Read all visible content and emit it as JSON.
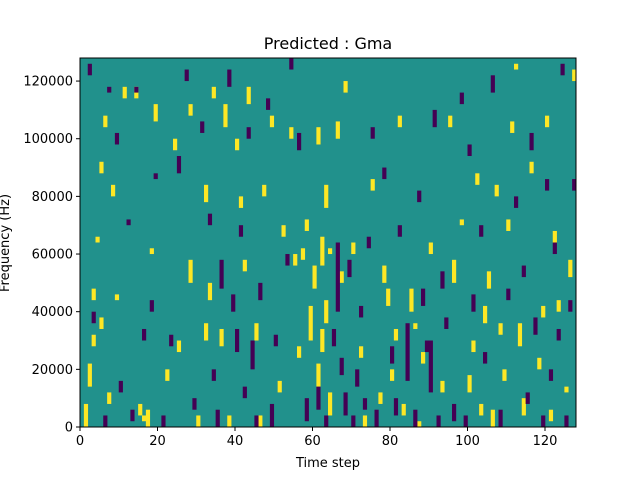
{
  "chart_data": {
    "type": "heatmap",
    "title": "Predicted : Gma",
    "xlabel": "Time step",
    "ylabel": "Frequency (Hz)",
    "xlim": [
      0,
      128
    ],
    "ylim": [
      0,
      128000
    ],
    "x_ticks": [
      0,
      20,
      40,
      60,
      80,
      100,
      120
    ],
    "y_ticks": [
      0,
      20000,
      40000,
      60000,
      80000,
      100000,
      120000
    ],
    "x_tick_labels": [
      "0",
      "20",
      "40",
      "60",
      "80",
      "100",
      "120"
    ],
    "y_tick_labels": [
      "0",
      "20000",
      "40000",
      "60000",
      "80000",
      "100000",
      "120000"
    ],
    "grid": false,
    "legend": "none",
    "value_range": [
      -1,
      1
    ],
    "colors": {
      "background": "#21918c",
      "high": "#fde725",
      "low": "#440154"
    },
    "background_value": 0,
    "cells": {
      "description_of_format": "each entry [time_step, frequency_bin_start_hz, frequency_bin_end_hz, value]",
      "high": [
        [
          1,
          0,
          8000,
          1
        ],
        [
          2,
          14000,
          22000,
          1
        ],
        [
          3,
          28000,
          32000,
          1
        ],
        [
          3,
          44000,
          48000,
          1
        ],
        [
          4,
          64000,
          66000,
          1
        ],
        [
          5,
          88000,
          92000,
          1
        ],
        [
          5,
          34000,
          38000,
          1
        ],
        [
          6,
          104000,
          108000,
          1
        ],
        [
          7,
          8000,
          12000,
          1
        ],
        [
          8,
          80000,
          84000,
          1
        ],
        [
          9,
          44000,
          46000,
          1
        ],
        [
          11,
          114000,
          118000,
          1
        ],
        [
          14,
          114000,
          118000,
          1
        ],
        [
          15,
          4000,
          8000,
          1
        ],
        [
          16,
          2000,
          4000,
          1
        ],
        [
          17,
          0,
          6000,
          1
        ],
        [
          18,
          60000,
          62000,
          1
        ],
        [
          19,
          106000,
          112000,
          1
        ],
        [
          22,
          16000,
          20000,
          1
        ],
        [
          24,
          96000,
          100000,
          1
        ],
        [
          25,
          26000,
          30000,
          1
        ],
        [
          28,
          108000,
          112000,
          1
        ],
        [
          28,
          50000,
          58000,
          1
        ],
        [
          30,
          0,
          4000,
          1
        ],
        [
          32,
          78000,
          84000,
          1
        ],
        [
          32,
          30000,
          36000,
          1
        ],
        [
          33,
          44000,
          50000,
          1
        ],
        [
          34,
          114000,
          118000,
          1
        ],
        [
          36,
          28000,
          34000,
          1
        ],
        [
          37,
          104000,
          112000,
          1
        ],
        [
          38,
          0,
          4000,
          1
        ],
        [
          40,
          96000,
          100000,
          1
        ],
        [
          41,
          76000,
          80000,
          1
        ],
        [
          42,
          54000,
          58000,
          1
        ],
        [
          43,
          112000,
          118000,
          1
        ],
        [
          45,
          30000,
          36000,
          1
        ],
        [
          46,
          0,
          4000,
          1
        ],
        [
          47,
          80000,
          84000,
          1
        ],
        [
          49,
          104000,
          108000,
          1
        ],
        [
          51,
          12000,
          16000,
          1
        ],
        [
          52,
          66000,
          70000,
          1
        ],
        [
          54,
          100000,
          104000,
          1
        ],
        [
          55,
          56000,
          60000,
          1
        ],
        [
          56,
          24000,
          28000,
          1
        ],
        [
          57,
          58000,
          62000,
          1
        ],
        [
          58,
          68000,
          72000,
          1
        ],
        [
          59,
          30000,
          42000,
          1
        ],
        [
          60,
          48000,
          56000,
          1
        ],
        [
          61,
          14000,
          22000,
          1
        ],
        [
          61,
          98000,
          104000,
          1
        ],
        [
          62,
          26000,
          34000,
          1
        ],
        [
          62,
          56000,
          66000,
          1
        ],
        [
          63,
          76000,
          84000,
          1
        ],
        [
          63,
          36000,
          44000,
          1
        ],
        [
          64,
          4000,
          12000,
          1
        ],
        [
          64,
          60000,
          62000,
          1
        ],
        [
          66,
          100000,
          106000,
          1
        ],
        [
          67,
          50000,
          54000,
          1
        ],
        [
          68,
          116000,
          120000,
          1
        ],
        [
          70,
          60000,
          64000,
          1
        ],
        [
          72,
          24000,
          28000,
          1
        ],
        [
          73,
          0,
          4000,
          1
        ],
        [
          75,
          82000,
          86000,
          1
        ],
        [
          77,
          8000,
          12000,
          1
        ],
        [
          78,
          50000,
          56000,
          1
        ],
        [
          79,
          42000,
          48000,
          1
        ],
        [
          80,
          16000,
          20000,
          1
        ],
        [
          81,
          30000,
          34000,
          1
        ],
        [
          82,
          104000,
          108000,
          1
        ],
        [
          83,
          4000,
          8000,
          1
        ],
        [
          85,
          40000,
          48000,
          1
        ],
        [
          86,
          34000,
          36000,
          1
        ],
        [
          87,
          0,
          2000,
          1
        ],
        [
          88,
          22000,
          26000,
          1
        ],
        [
          90,
          60000,
          64000,
          1
        ],
        [
          93,
          12000,
          16000,
          1
        ],
        [
          95,
          104000,
          108000,
          1
        ],
        [
          96,
          50000,
          58000,
          1
        ],
        [
          98,
          70000,
          72000,
          1
        ],
        [
          100,
          12000,
          18000,
          1
        ],
        [
          101,
          26000,
          30000,
          1
        ],
        [
          102,
          84000,
          88000,
          1
        ],
        [
          103,
          4000,
          8000,
          1
        ],
        [
          104,
          36000,
          42000,
          1
        ],
        [
          105,
          48000,
          54000,
          1
        ],
        [
          106,
          0,
          6000,
          1
        ],
        [
          107,
          80000,
          84000,
          1
        ],
        [
          108,
          32000,
          36000,
          1
        ],
        [
          109,
          16000,
          20000,
          1
        ],
        [
          110,
          68000,
          72000,
          1
        ],
        [
          111,
          102000,
          106000,
          1
        ],
        [
          112,
          124000,
          126000,
          1
        ],
        [
          113,
          28000,
          36000,
          1
        ],
        [
          114,
          4000,
          10000,
          1
        ],
        [
          116,
          88000,
          92000,
          1
        ],
        [
          118,
          20000,
          24000,
          1
        ],
        [
          119,
          38000,
          42000,
          1
        ],
        [
          120,
          104000,
          108000,
          1
        ],
        [
          121,
          2000,
          6000,
          1
        ],
        [
          122,
          64000,
          68000,
          1
        ],
        [
          123,
          40000,
          44000,
          1
        ],
        [
          125,
          12000,
          14000,
          1
        ],
        [
          126,
          52000,
          58000,
          1
        ],
        [
          127,
          120000,
          124000,
          1
        ]
      ],
      "low": [
        [
          2,
          122000,
          126000,
          -1
        ],
        [
          3,
          36000,
          40000,
          -1
        ],
        [
          6,
          0,
          4000,
          -1
        ],
        [
          7,
          116000,
          118000,
          -1
        ],
        [
          9,
          98000,
          102000,
          -1
        ],
        [
          10,
          12000,
          16000,
          -1
        ],
        [
          12,
          70000,
          72000,
          -1
        ],
        [
          13,
          2000,
          6000,
          -1
        ],
        [
          14,
          116000,
          118000,
          -1
        ],
        [
          16,
          30000,
          34000,
          -1
        ],
        [
          18,
          40000,
          44000,
          -1
        ],
        [
          19,
          86000,
          88000,
          -1
        ],
        [
          21,
          0,
          4000,
          -1
        ],
        [
          23,
          28000,
          32000,
          -1
        ],
        [
          25,
          88000,
          94000,
          -1
        ],
        [
          27,
          120000,
          124000,
          -1
        ],
        [
          29,
          6000,
          10000,
          -1
        ],
        [
          31,
          102000,
          106000,
          -1
        ],
        [
          33,
          70000,
          74000,
          -1
        ],
        [
          34,
          16000,
          20000,
          -1
        ],
        [
          35,
          0,
          6000,
          -1
        ],
        [
          36,
          48000,
          58000,
          -1
        ],
        [
          38,
          118000,
          124000,
          -1
        ],
        [
          39,
          40000,
          46000,
          -1
        ],
        [
          40,
          26000,
          34000,
          -1
        ],
        [
          41,
          66000,
          70000,
          -1
        ],
        [
          42,
          10000,
          14000,
          -1
        ],
        [
          43,
          100000,
          104000,
          -1
        ],
        [
          44,
          20000,
          30000,
          -1
        ],
        [
          45,
          0,
          4000,
          -1
        ],
        [
          46,
          44000,
          50000,
          -1
        ],
        [
          48,
          110000,
          114000,
          -1
        ],
        [
          49,
          0,
          8000,
          -1
        ],
        [
          50,
          28000,
          32000,
          -1
        ],
        [
          53,
          56000,
          60000,
          -1
        ],
        [
          54,
          124000,
          128000,
          -1
        ],
        [
          56,
          96000,
          102000,
          -1
        ],
        [
          58,
          2000,
          10000,
          -1
        ],
        [
          61,
          6000,
          14000,
          -1
        ],
        [
          63,
          0,
          4000,
          -1
        ],
        [
          65,
          28000,
          34000,
          -1
        ],
        [
          66,
          40000,
          64000,
          -1
        ],
        [
          67,
          18000,
          24000,
          -1
        ],
        [
          68,
          4000,
          12000,
          -1
        ],
        [
          69,
          52000,
          58000,
          -1
        ],
        [
          70,
          0,
          4000,
          -1
        ],
        [
          71,
          14000,
          20000,
          -1
        ],
        [
          72,
          38000,
          42000,
          -1
        ],
        [
          73,
          6000,
          10000,
          -1
        ],
        [
          74,
          62000,
          66000,
          -1
        ],
        [
          75,
          100000,
          104000,
          -1
        ],
        [
          76,
          0,
          6000,
          -1
        ],
        [
          78,
          86000,
          90000,
          -1
        ],
        [
          80,
          22000,
          28000,
          -1
        ],
        [
          81,
          4000,
          10000,
          -1
        ],
        [
          82,
          66000,
          70000,
          -1
        ],
        [
          84,
          16000,
          36000,
          -1
        ],
        [
          86,
          0,
          6000,
          -1
        ],
        [
          87,
          78000,
          82000,
          -1
        ],
        [
          88,
          42000,
          48000,
          -1
        ],
        [
          89,
          26000,
          30000,
          -1
        ],
        [
          90,
          12000,
          30000,
          -1
        ],
        [
          91,
          104000,
          110000,
          -1
        ],
        [
          92,
          0,
          4000,
          -1
        ],
        [
          93,
          48000,
          54000,
          -1
        ],
        [
          94,
          34000,
          38000,
          -1
        ],
        [
          96,
          2000,
          8000,
          -1
        ],
        [
          98,
          112000,
          116000,
          -1
        ],
        [
          99,
          0,
          4000,
          -1
        ],
        [
          100,
          94000,
          98000,
          -1
        ],
        [
          101,
          40000,
          46000,
          -1
        ],
        [
          103,
          66000,
          70000,
          -1
        ],
        [
          104,
          22000,
          26000,
          -1
        ],
        [
          106,
          116000,
          122000,
          -1
        ],
        [
          108,
          0,
          6000,
          -1
        ],
        [
          110,
          44000,
          48000,
          -1
        ],
        [
          112,
          76000,
          80000,
          -1
        ],
        [
          114,
          52000,
          56000,
          -1
        ],
        [
          115,
          8000,
          12000,
          -1
        ],
        [
          116,
          96000,
          102000,
          -1
        ],
        [
          117,
          32000,
          38000,
          -1
        ],
        [
          119,
          0,
          4000,
          -1
        ],
        [
          120,
          82000,
          86000,
          -1
        ],
        [
          121,
          16000,
          20000,
          -1
        ],
        [
          122,
          60000,
          64000,
          -1
        ],
        [
          123,
          30000,
          34000,
          -1
        ],
        [
          124,
          122000,
          126000,
          -1
        ],
        [
          125,
          0,
          4000,
          -1
        ],
        [
          126,
          40000,
          44000,
          -1
        ],
        [
          127,
          82000,
          86000,
          -1
        ]
      ]
    }
  }
}
